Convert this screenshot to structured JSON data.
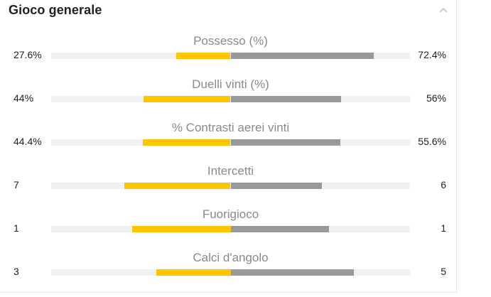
{
  "section": {
    "title": "Gioco generale",
    "collapse_icon": "chevron-up-icon"
  },
  "colors": {
    "home_bar": "#ffc600",
    "away_bar": "#999999",
    "track": "#f1f1f1"
  },
  "stats": [
    {
      "label": "Possesso (%)",
      "home": "27.6%",
      "away": "72.4%",
      "home_fraction": 0.276,
      "away_fraction": 0.724
    },
    {
      "label": "Duelli vinti (%)",
      "home": "44%",
      "away": "56%",
      "home_fraction": 0.44,
      "away_fraction": 0.56
    },
    {
      "label": "% Contrasti aerei vinti",
      "home": "44.4%",
      "away": "55.6%",
      "home_fraction": 0.444,
      "away_fraction": 0.556
    },
    {
      "label": "Intercetti",
      "home": "7",
      "away": "6",
      "home_fraction": 0.538,
      "away_fraction": 0.462
    },
    {
      "label": "Fuorigioco",
      "home": "1",
      "away": "1",
      "home_fraction": 0.5,
      "away_fraction": 0.5
    },
    {
      "label": "Calci d'angolo",
      "home": "3",
      "away": "5",
      "home_fraction": 0.375,
      "away_fraction": 0.625
    }
  ]
}
